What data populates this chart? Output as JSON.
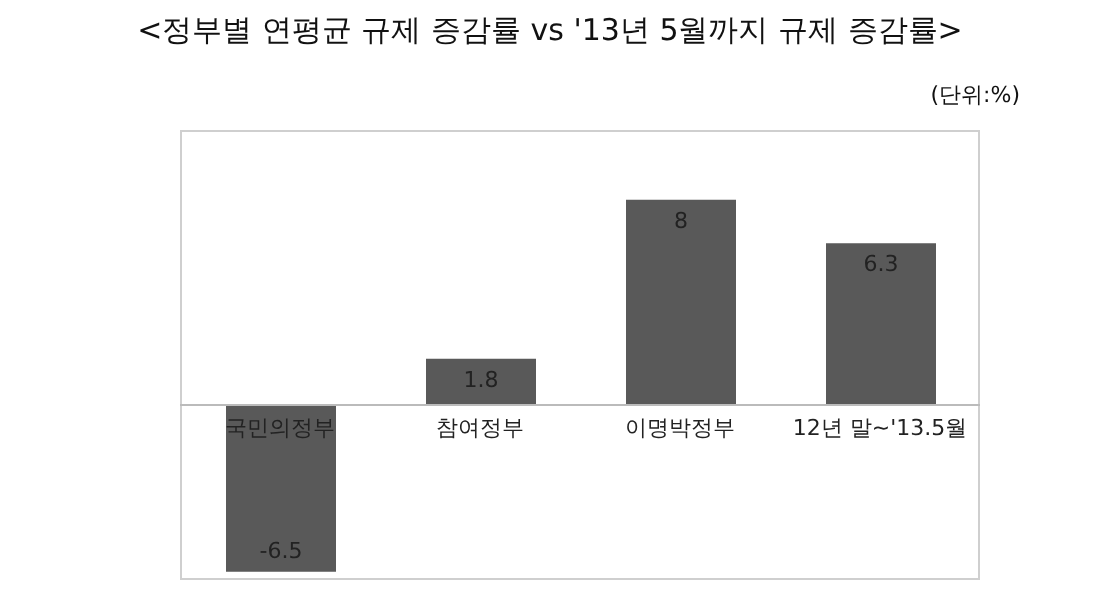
{
  "chart_data": {
    "type": "bar",
    "title": "<정부별 연평균 규제 증감률 vs '13년 5월까지 규제 증감률>",
    "subtitle": "(단위:%)",
    "categories": [
      "국민의정부",
      "참여정부",
      "이명박정부",
      "12년 말~'13.5월"
    ],
    "values": [
      -6.5,
      1.8,
      8,
      6.3
    ],
    "color": "#595959",
    "data_labels": true
  }
}
